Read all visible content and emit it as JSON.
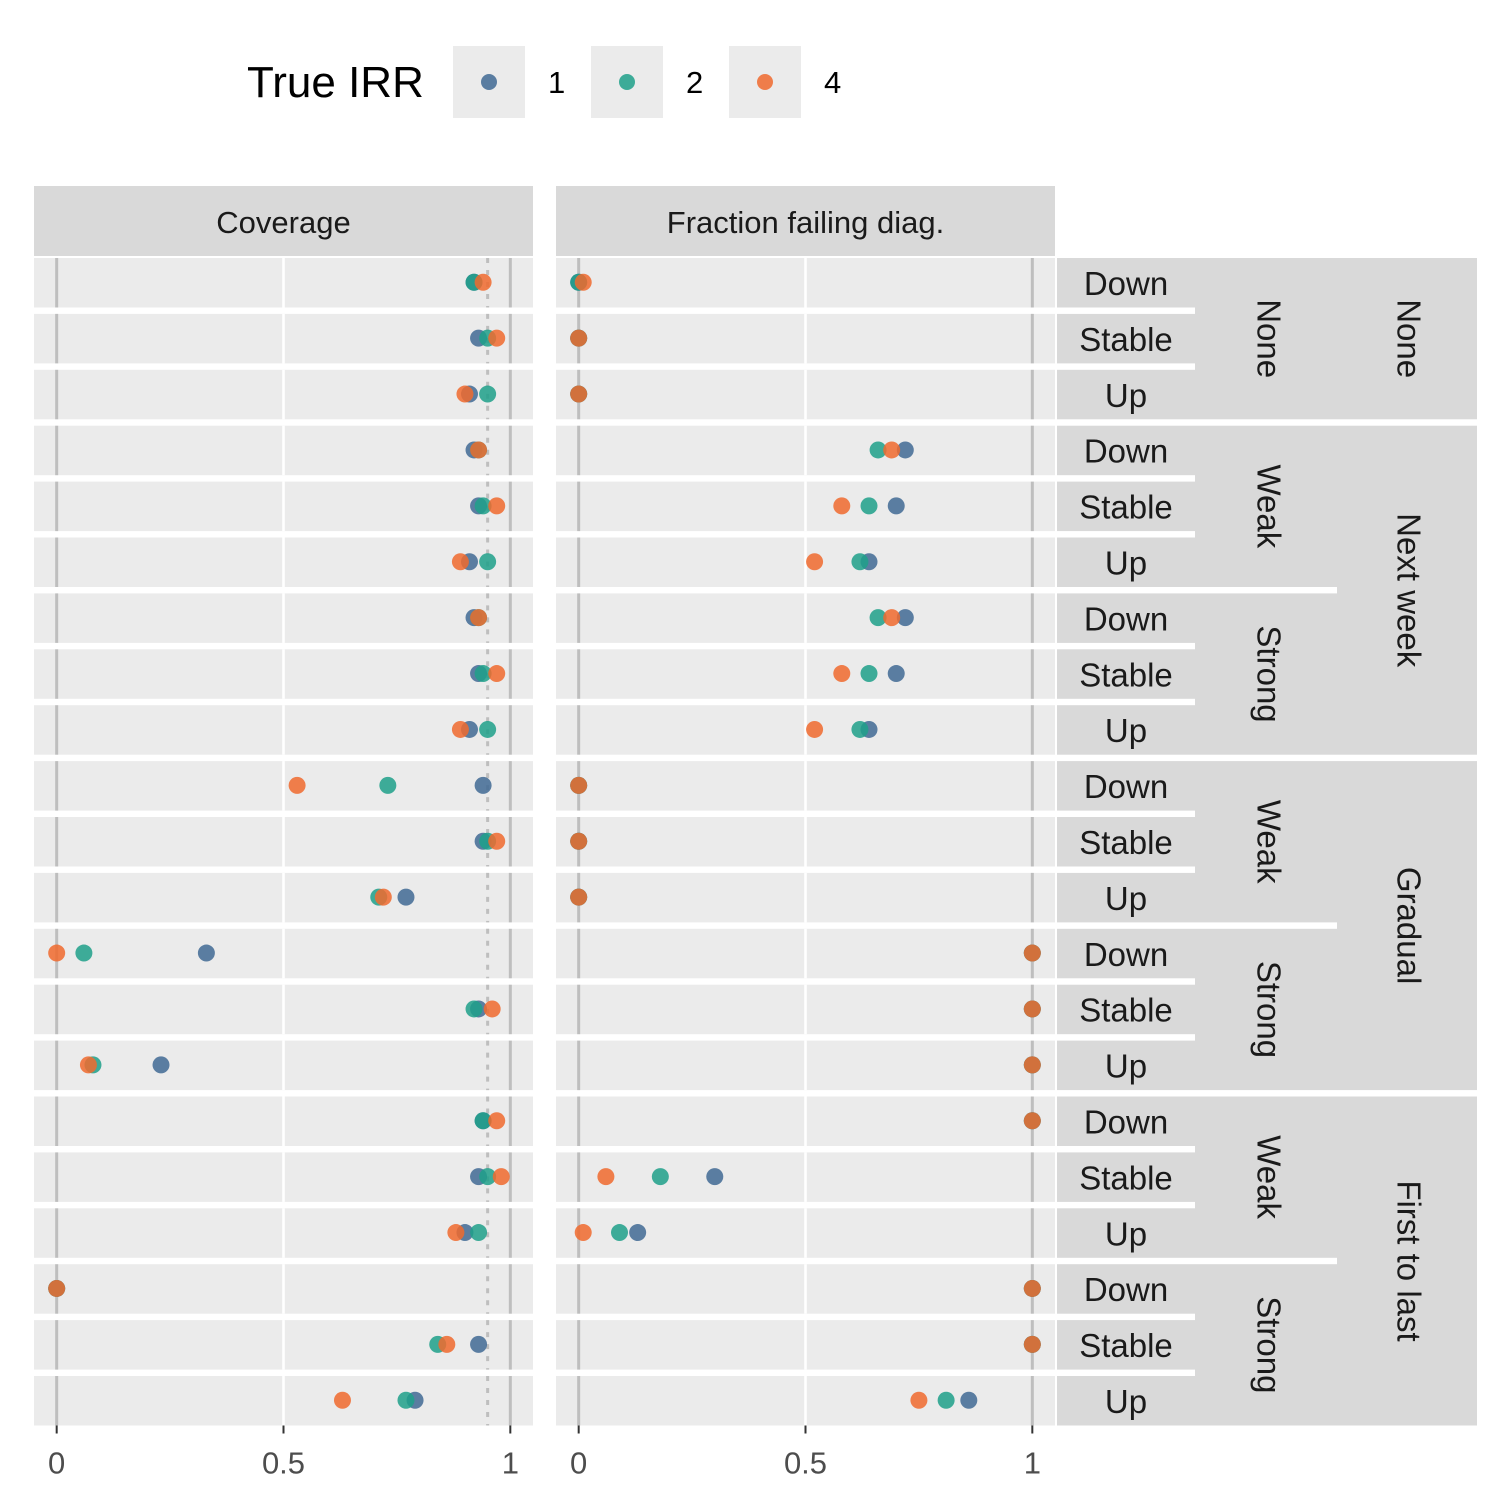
{
  "legend": {
    "title": "True IRR",
    "items": [
      {
        "label": "1",
        "color": "#416A94"
      },
      {
        "label": "2",
        "color": "#1FA08A"
      },
      {
        "label": "4",
        "color": "#F06A2E"
      }
    ]
  },
  "reference_line": 0.95,
  "chart_data": {
    "type": "scatter",
    "panels": [
      "Coverage",
      "Fraction failing diag."
    ],
    "xlim": [
      0,
      1
    ],
    "xticks": [
      0,
      0.5,
      1
    ],
    "xtick_labels": [
      "0",
      "0.5",
      "1"
    ],
    "series_names": [
      "1",
      "2",
      "4"
    ],
    "groups": [
      {
        "label": "None",
        "subgroups": [
          {
            "label": "None",
            "rows": [
              "Down",
              "Stable",
              "Up"
            ]
          }
        ]
      },
      {
        "label": "Next week",
        "subgroups": [
          {
            "label": "Weak",
            "rows": [
              "Down",
              "Stable",
              "Up"
            ]
          },
          {
            "label": "Strong",
            "rows": [
              "Down",
              "Stable",
              "Up"
            ]
          }
        ]
      },
      {
        "label": "Gradual",
        "subgroups": [
          {
            "label": "Weak",
            "rows": [
              "Down",
              "Stable",
              "Up"
            ]
          },
          {
            "label": "Strong",
            "rows": [
              "Down",
              "Stable",
              "Up"
            ]
          }
        ]
      },
      {
        "label": "First to last",
        "subgroups": [
          {
            "label": "Weak",
            "rows": [
              "Down",
              "Stable",
              "Up"
            ]
          },
          {
            "label": "Strong",
            "rows": [
              "Down",
              "Stable",
              "Up"
            ]
          }
        ]
      }
    ],
    "coverage": [
      [
        0.92,
        0.92,
        0.94
      ],
      [
        0.93,
        0.95,
        0.97
      ],
      [
        0.91,
        0.95,
        0.9
      ],
      [
        0.92,
        0.93,
        0.93
      ],
      [
        0.93,
        0.94,
        0.97
      ],
      [
        0.91,
        0.95,
        0.89
      ],
      [
        0.92,
        0.93,
        0.93
      ],
      [
        0.93,
        0.94,
        0.97
      ],
      [
        0.91,
        0.95,
        0.89
      ],
      [
        0.94,
        0.73,
        0.53
      ],
      [
        0.94,
        0.95,
        0.97
      ],
      [
        0.77,
        0.71,
        0.72
      ],
      [
        0.33,
        0.06,
        0.0
      ],
      [
        0.93,
        0.92,
        0.96
      ],
      [
        0.23,
        0.08,
        0.07
      ],
      [
        0.94,
        0.94,
        0.97
      ],
      [
        0.93,
        0.95,
        0.98
      ],
      [
        0.9,
        0.93,
        0.88
      ],
      [
        0.0,
        0.0,
        0.0
      ],
      [
        0.93,
        0.84,
        0.86
      ],
      [
        0.79,
        0.77,
        0.63
      ]
    ],
    "fraction_failing": [
      [
        0.0,
        0.0,
        0.01
      ],
      [
        0.0,
        0.0,
        0.0
      ],
      [
        0.0,
        0.0,
        0.0
      ],
      [
        0.72,
        0.66,
        0.69
      ],
      [
        0.7,
        0.64,
        0.58
      ],
      [
        0.64,
        0.62,
        0.52
      ],
      [
        0.72,
        0.66,
        0.69
      ],
      [
        0.7,
        0.64,
        0.58
      ],
      [
        0.64,
        0.62,
        0.52
      ],
      [
        0.0,
        0.0,
        0.0
      ],
      [
        0.0,
        0.0,
        0.0
      ],
      [
        0.0,
        0.0,
        0.0
      ],
      [
        1.0,
        1.0,
        1.0
      ],
      [
        1.0,
        1.0,
        1.0
      ],
      [
        1.0,
        1.0,
        1.0
      ],
      [
        1.0,
        1.0,
        1.0
      ],
      [
        0.3,
        0.18,
        0.06
      ],
      [
        0.13,
        0.09,
        0.01
      ],
      [
        1.0,
        1.0,
        1.0
      ],
      [
        1.0,
        1.0,
        1.0
      ],
      [
        0.86,
        0.81,
        0.75
      ]
    ]
  }
}
